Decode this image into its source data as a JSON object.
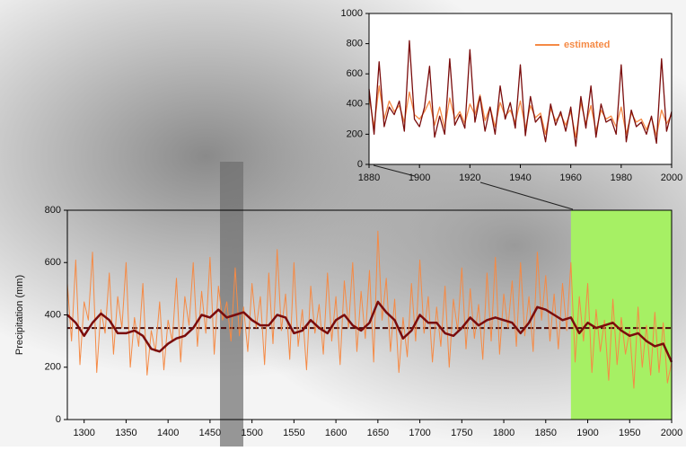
{
  "chart_data": [
    {
      "type": "line",
      "y_label": "Precipitation (mm)",
      "xlim": [
        1280,
        2000
      ],
      "ylim": [
        0,
        800
      ],
      "xticks": [
        1300,
        1350,
        1400,
        1450,
        1500,
        1550,
        1600,
        1650,
        1700,
        1750,
        1800,
        1850,
        1900,
        1950,
        2000
      ],
      "yticks": [
        0,
        200,
        400,
        600,
        800
      ],
      "highlight": {
        "xlim": [
          1880,
          2000
        ],
        "color": "#a6f064"
      },
      "hline": {
        "value": 350,
        "color": "#4a0a0a",
        "dash": true
      },
      "series": [
        {
          "color": "#f58a45",
          "linewidth": 1,
          "x": [
            1280,
            1285,
            1290,
            1295,
            1300,
            1305,
            1310,
            1315,
            1320,
            1325,
            1330,
            1335,
            1340,
            1345,
            1350,
            1355,
            1360,
            1365,
            1370,
            1375,
            1380,
            1385,
            1390,
            1395,
            1400,
            1405,
            1410,
            1415,
            1420,
            1425,
            1430,
            1435,
            1440,
            1445,
            1450,
            1455,
            1460,
            1465,
            1470,
            1475,
            1480,
            1485,
            1490,
            1495,
            1500,
            1505,
            1510,
            1515,
            1520,
            1525,
            1530,
            1535,
            1540,
            1545,
            1550,
            1555,
            1560,
            1565,
            1570,
            1575,
            1580,
            1585,
            1590,
            1595,
            1600,
            1605,
            1610,
            1615,
            1620,
            1625,
            1630,
            1635,
            1640,
            1645,
            1650,
            1655,
            1660,
            1665,
            1670,
            1675,
            1680,
            1685,
            1690,
            1695,
            1700,
            1705,
            1710,
            1715,
            1720,
            1725,
            1730,
            1735,
            1740,
            1745,
            1750,
            1755,
            1760,
            1765,
            1770,
            1775,
            1780,
            1785,
            1790,
            1795,
            1800,
            1805,
            1810,
            1815,
            1820,
            1825,
            1830,
            1835,
            1840,
            1845,
            1850,
            1855,
            1860,
            1865,
            1870,
            1875,
            1880,
            1885,
            1890,
            1895,
            1900,
            1905,
            1910,
            1915,
            1920,
            1925,
            1930,
            1935,
            1940,
            1945,
            1950,
            1955,
            1960,
            1965,
            1970,
            1975,
            1980,
            1985,
            1990,
            1995,
            2000
          ],
          "values": [
            520,
            300,
            610,
            210,
            450,
            380,
            640,
            180,
            420,
            330,
            560,
            250,
            470,
            350,
            600,
            200,
            390,
            280,
            520,
            170,
            340,
            260,
            450,
            190,
            380,
            300,
            540,
            220,
            470,
            360,
            600,
            280,
            490,
            330,
            620,
            250,
            510,
            380,
            450,
            300,
            580,
            320,
            430,
            260,
            520,
            350,
            470,
            210,
            560,
            290,
            650,
            340,
            480,
            230,
            600,
            280,
            420,
            190,
            510,
            330,
            440,
            250,
            560,
            300,
            470,
            210,
            530,
            350,
            600,
            260,
            490,
            310,
            570,
            220,
            720,
            380,
            540,
            260,
            460,
            180,
            390,
            240,
            520,
            300,
            610,
            330,
            470,
            220,
            430,
            280,
            510,
            200,
            460,
            340,
            580,
            270,
            500,
            310,
            440,
            230,
            560,
            300,
            620,
            250,
            480,
            350,
            530,
            280,
            600,
            320,
            470,
            260,
            640,
            380,
            550,
            300,
            480,
            270,
            520,
            340,
            600,
            220,
            470,
            300,
            520,
            180,
            420,
            260,
            380,
            150,
            460,
            210,
            390,
            250,
            340,
            120,
            430,
            200,
            360,
            170,
            410,
            180,
            370,
            140,
            220
          ]
        },
        {
          "color": "#7a0c0c",
          "linewidth": 2.5,
          "x": [
            1280,
            1290,
            1300,
            1310,
            1320,
            1330,
            1340,
            1350,
            1360,
            1370,
            1380,
            1390,
            1400,
            1410,
            1420,
            1430,
            1440,
            1450,
            1460,
            1470,
            1480,
            1490,
            1500,
            1510,
            1520,
            1530,
            1540,
            1550,
            1560,
            1570,
            1580,
            1590,
            1600,
            1610,
            1620,
            1630,
            1640,
            1650,
            1660,
            1670,
            1680,
            1690,
            1700,
            1710,
            1720,
            1730,
            1740,
            1750,
            1760,
            1770,
            1780,
            1790,
            1800,
            1810,
            1820,
            1830,
            1840,
            1850,
            1860,
            1870,
            1880,
            1890,
            1900,
            1910,
            1920,
            1930,
            1940,
            1950,
            1960,
            1970,
            1980,
            1990,
            2000
          ],
          "values": [
            400,
            370,
            320,
            370,
            405,
            380,
            330,
            330,
            340,
            320,
            270,
            260,
            290,
            310,
            320,
            350,
            400,
            390,
            420,
            390,
            400,
            410,
            380,
            360,
            360,
            400,
            390,
            330,
            340,
            380,
            350,
            330,
            380,
            400,
            360,
            340,
            370,
            450,
            410,
            380,
            310,
            340,
            400,
            370,
            370,
            330,
            320,
            350,
            390,
            360,
            380,
            390,
            380,
            370,
            330,
            370,
            430,
            420,
            400,
            380,
            390,
            330,
            370,
            350,
            360,
            370,
            340,
            320,
            330,
            300,
            280,
            290,
            220
          ]
        }
      ]
    },
    {
      "type": "line",
      "legend": "inside",
      "xlim": [
        1880,
        2000
      ],
      "ylim": [
        0,
        1000
      ],
      "xticks": [
        1880,
        1900,
        1920,
        1940,
        1960,
        1980,
        2000
      ],
      "yticks": [
        0,
        200,
        400,
        600,
        800,
        1000
      ],
      "series": [
        {
          "name": "estimated",
          "color": "#f58a45",
          "linewidth": 1.3,
          "x": [
            1880,
            1882,
            1884,
            1886,
            1888,
            1890,
            1892,
            1894,
            1896,
            1898,
            1900,
            1902,
            1904,
            1906,
            1908,
            1910,
            1912,
            1914,
            1916,
            1918,
            1920,
            1922,
            1924,
            1926,
            1928,
            1930,
            1932,
            1934,
            1936,
            1938,
            1940,
            1942,
            1944,
            1946,
            1948,
            1950,
            1952,
            1954,
            1956,
            1958,
            1960,
            1962,
            1964,
            1966,
            1968,
            1970,
            1972,
            1974,
            1976,
            1978,
            1980,
            1982,
            1984,
            1986,
            1988,
            1990,
            1992,
            1994,
            1996,
            1998,
            2000
          ],
          "values": [
            450,
            250,
            520,
            300,
            420,
            350,
            390,
            280,
            480,
            330,
            300,
            350,
            420,
            260,
            380,
            240,
            440,
            300,
            350,
            270,
            400,
            330,
            460,
            290,
            380,
            250,
            410,
            320,
            360,
            280,
            420,
            240,
            390,
            310,
            340,
            200,
            370,
            290,
            330,
            260,
            350,
            180,
            410,
            270,
            390,
            220,
            360,
            300,
            320,
            250,
            380,
            200,
            340,
            280,
            300,
            230,
            310,
            190,
            360,
            270,
            330
          ]
        },
        {
          "color": "#7a0c0c",
          "linewidth": 1.3,
          "x": [
            1880,
            1882,
            1884,
            1886,
            1888,
            1890,
            1892,
            1894,
            1896,
            1898,
            1900,
            1902,
            1904,
            1906,
            1908,
            1910,
            1912,
            1914,
            1916,
            1918,
            1920,
            1922,
            1924,
            1926,
            1928,
            1930,
            1932,
            1934,
            1936,
            1938,
            1940,
            1942,
            1944,
            1946,
            1948,
            1950,
            1952,
            1954,
            1956,
            1958,
            1960,
            1962,
            1964,
            1966,
            1968,
            1970,
            1972,
            1974,
            1976,
            1978,
            1980,
            1982,
            1984,
            1986,
            1988,
            1990,
            1992,
            1994,
            1996,
            1998,
            2000
          ],
          "values": [
            500,
            200,
            680,
            250,
            380,
            330,
            420,
            220,
            820,
            300,
            250,
            380,
            650,
            180,
            320,
            200,
            700,
            260,
            330,
            240,
            760,
            280,
            450,
            220,
            380,
            200,
            520,
            300,
            410,
            240,
            660,
            190,
            450,
            280,
            320,
            150,
            400,
            260,
            350,
            220,
            380,
            120,
            450,
            240,
            520,
            180,
            400,
            280,
            300,
            200,
            660,
            150,
            360,
            250,
            280,
            200,
            320,
            140,
            700,
            220,
            350
          ]
        }
      ]
    }
  ]
}
